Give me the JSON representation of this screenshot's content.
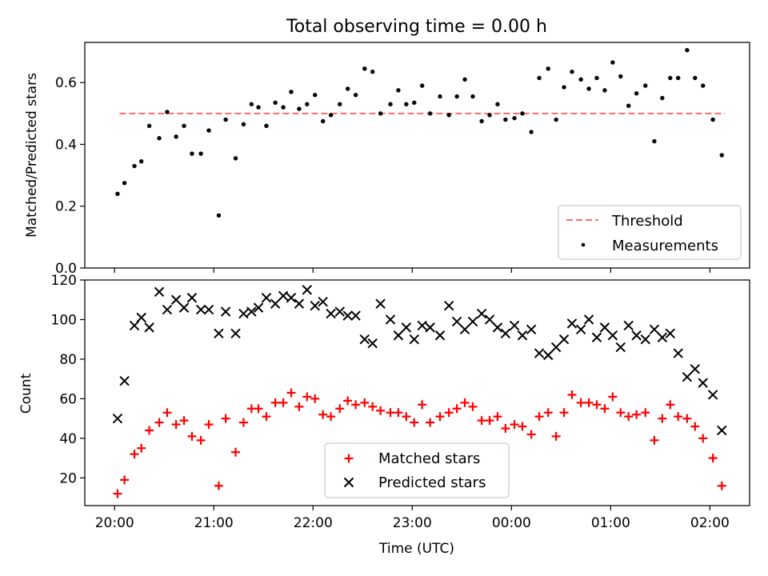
{
  "title": "Total observing time = 0.00 h",
  "x_tick_labels": [
    "20:00",
    "21:00",
    "22:00",
    "23:00",
    "00:00",
    "01:00",
    "02:00"
  ],
  "x_ticks_hours": [
    20,
    21,
    22,
    23,
    24,
    25,
    26
  ],
  "colors": {
    "threshold": "#ff6b6b",
    "measurements": "#000000",
    "matched": "#ff0000",
    "predicted": "#000000"
  },
  "chart_data": [
    {
      "type": "scatter",
      "ylabel": "Matched/Predicted stars",
      "ylim": [
        0,
        0.73
      ],
      "y_tick_labels": [
        "0.0",
        "0.2",
        "0.4",
        "0.6"
      ],
      "y_ticks": [
        0,
        0.2,
        0.4,
        0.6
      ],
      "xlim_hours": [
        19.7,
        26.4
      ],
      "legend": "lower-right",
      "threshold": {
        "name": "Threshold",
        "y": 0.5,
        "x_range_hours": [
          20.05,
          26.15
        ]
      },
      "series": [
        {
          "name": "Measurements",
          "x_hours": [
            20.03,
            20.1,
            20.2,
            20.27,
            20.35,
            20.45,
            20.53,
            20.62,
            20.7,
            20.78,
            20.87,
            20.95,
            21.05,
            21.12,
            21.22,
            21.3,
            21.38,
            21.45,
            21.53,
            21.62,
            21.7,
            21.78,
            21.86,
            21.94,
            22.02,
            22.1,
            22.18,
            22.27,
            22.35,
            22.43,
            22.52,
            22.6,
            22.68,
            22.78,
            22.86,
            22.94,
            23.02,
            23.1,
            23.18,
            23.28,
            23.37,
            23.45,
            23.53,
            23.61,
            23.7,
            23.78,
            23.86,
            23.94,
            24.03,
            24.11,
            24.2,
            24.28,
            24.37,
            24.45,
            24.53,
            24.61,
            24.7,
            24.78,
            24.86,
            24.94,
            25.02,
            25.1,
            25.18,
            25.26,
            25.35,
            25.44,
            25.52,
            25.6,
            25.68,
            25.77,
            25.85,
            25.93,
            26.03,
            26.12
          ],
          "y": [
            0.24,
            0.275,
            0.33,
            0.345,
            0.46,
            0.42,
            0.505,
            0.425,
            0.46,
            0.37,
            0.37,
            0.445,
            0.17,
            0.48,
            0.355,
            0.465,
            0.53,
            0.52,
            0.46,
            0.535,
            0.52,
            0.57,
            0.515,
            0.53,
            0.56,
            0.475,
            0.495,
            0.53,
            0.58,
            0.56,
            0.645,
            0.635,
            0.5,
            0.53,
            0.575,
            0.53,
            0.535,
            0.59,
            0.5,
            0.555,
            0.495,
            0.555,
            0.61,
            0.555,
            0.475,
            0.495,
            0.53,
            0.48,
            0.485,
            0.5,
            0.44,
            0.615,
            0.645,
            0.48,
            0.585,
            0.635,
            0.61,
            0.58,
            0.615,
            0.575,
            0.665,
            0.62,
            0.525,
            0.565,
            0.59,
            0.41,
            0.55,
            0.615,
            0.615,
            0.705,
            0.615,
            0.59,
            0.48,
            0.365
          ]
        }
      ]
    },
    {
      "type": "scatter",
      "xlabel": "Time (UTC)",
      "ylabel": "Count",
      "ylim": [
        6,
        120
      ],
      "y_tick_labels": [
        "20",
        "40",
        "60",
        "80",
        "100",
        "120"
      ],
      "y_ticks": [
        20,
        40,
        60,
        80,
        100,
        120
      ],
      "xlim_hours": [
        19.7,
        26.4
      ],
      "legend": "lower-center",
      "series": [
        {
          "name": "Matched stars",
          "marker": "+",
          "x_hours": [
            20.03,
            20.1,
            20.2,
            20.27,
            20.35,
            20.45,
            20.53,
            20.62,
            20.7,
            20.78,
            20.87,
            20.95,
            21.05,
            21.12,
            21.22,
            21.3,
            21.38,
            21.45,
            21.53,
            21.62,
            21.7,
            21.78,
            21.86,
            21.94,
            22.02,
            22.1,
            22.18,
            22.27,
            22.35,
            22.43,
            22.52,
            22.6,
            22.68,
            22.78,
            22.86,
            22.94,
            23.02,
            23.1,
            23.18,
            23.28,
            23.37,
            23.45,
            23.53,
            23.61,
            23.7,
            23.78,
            23.86,
            23.94,
            24.03,
            24.11,
            24.2,
            24.28,
            24.37,
            24.45,
            24.53,
            24.61,
            24.7,
            24.78,
            24.86,
            24.94,
            25.02,
            25.1,
            25.18,
            25.26,
            25.35,
            25.44,
            25.52,
            25.6,
            25.68,
            25.77,
            25.85,
            25.93,
            26.03,
            26.12
          ],
          "y": [
            12,
            19,
            32,
            35,
            44,
            48,
            53,
            47,
            49,
            41,
            39,
            47,
            16,
            50,
            33,
            48,
            55,
            55,
            51,
            58,
            58,
            63,
            56,
            61,
            60,
            52,
            51,
            55,
            59,
            57,
            58,
            56,
            54,
            53,
            53,
            51,
            48,
            57,
            48,
            51,
            53,
            55,
            58,
            56,
            49,
            49,
            51,
            45,
            47,
            46,
            42,
            51,
            53,
            41,
            53,
            62,
            58,
            58,
            57,
            55,
            61,
            53,
            51,
            52,
            53,
            39,
            50,
            57,
            51,
            50,
            46,
            40,
            30,
            16
          ]
        },
        {
          "name": "Predicted stars",
          "marker": "x",
          "x_hours": [
            20.03,
            20.1,
            20.2,
            20.27,
            20.35,
            20.45,
            20.53,
            20.62,
            20.7,
            20.78,
            20.87,
            20.95,
            21.05,
            21.12,
            21.22,
            21.3,
            21.38,
            21.45,
            21.53,
            21.62,
            21.7,
            21.78,
            21.86,
            21.94,
            22.02,
            22.1,
            22.18,
            22.27,
            22.35,
            22.43,
            22.52,
            22.6,
            22.68,
            22.78,
            22.86,
            22.94,
            23.02,
            23.1,
            23.18,
            23.28,
            23.37,
            23.45,
            23.53,
            23.61,
            23.7,
            23.78,
            23.86,
            23.94,
            24.03,
            24.11,
            24.2,
            24.28,
            24.37,
            24.45,
            24.53,
            24.61,
            24.7,
            24.78,
            24.86,
            24.94,
            25.02,
            25.1,
            25.18,
            25.26,
            25.35,
            25.44,
            25.52,
            25.6,
            25.68,
            25.77,
            25.85,
            25.93,
            26.03,
            26.12
          ],
          "y": [
            50,
            69,
            97,
            101,
            96,
            114,
            105,
            110,
            106,
            111,
            105,
            105,
            93,
            104,
            93,
            103,
            104,
            106,
            111,
            108,
            112,
            111,
            108,
            115,
            107,
            109,
            103,
            104,
            102,
            102,
            90,
            88,
            108,
            100,
            92,
            96,
            90,
            97,
            96,
            92,
            107,
            99,
            95,
            99,
            103,
            100,
            96,
            93,
            97,
            92,
            95,
            83,
            82,
            86,
            90,
            98,
            95,
            100,
            91,
            96,
            92,
            86,
            97,
            92,
            90,
            95,
            91,
            93,
            83,
            71,
            75,
            68,
            62,
            44
          ]
        }
      ]
    }
  ]
}
